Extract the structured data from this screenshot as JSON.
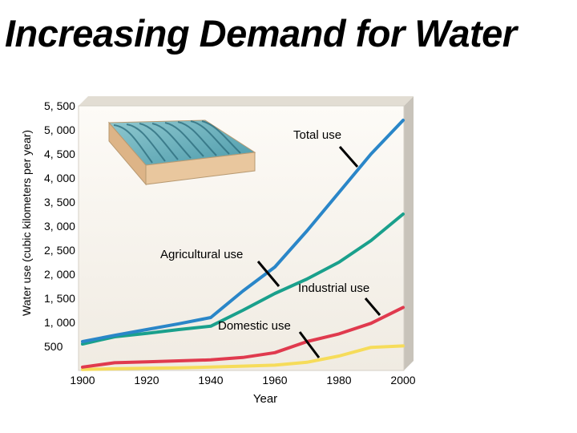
{
  "page": {
    "title": "Increasing Demand for Water"
  },
  "chart_data": {
    "type": "line",
    "title": "Increasing Demand for Water",
    "xlabel": "Year",
    "ylabel": "Water use (cubic kilometers per year)",
    "xlim": [
      1900,
      2000
    ],
    "ylim": [
      0,
      5500
    ],
    "x_ticks": [
      1900,
      1920,
      1940,
      1960,
      1980,
      2000
    ],
    "x_tick_labels": [
      "1900",
      "1920",
      "1940",
      "1960",
      "1980",
      "2000"
    ],
    "y_ticks": [
      500,
      1000,
      1500,
      2000,
      2500,
      3000,
      3500,
      4000,
      4500,
      5000,
      5500
    ],
    "y_tick_labels": [
      "500",
      "1, 000",
      "1, 500",
      "2, 000",
      "2, 500",
      "3, 000",
      "3, 500",
      "4, 000",
      "4, 500",
      "5, 000",
      "5, 500"
    ],
    "grid": false,
    "legend": "none",
    "series": [
      {
        "name": "Total use",
        "color": "#2a86c8",
        "x": [
          1900,
          1910,
          1920,
          1930,
          1940,
          1950,
          1960,
          1970,
          1980,
          1990,
          2000
        ],
        "y": [
          600,
          730,
          850,
          970,
          1100,
          1650,
          2150,
          2900,
          3700,
          4500,
          5200
        ]
      },
      {
        "name": "Agricultural use",
        "color": "#1aa08c",
        "x": [
          1900,
          1910,
          1920,
          1930,
          1940,
          1950,
          1960,
          1970,
          1980,
          1990,
          2000
        ],
        "y": [
          550,
          700,
          770,
          850,
          920,
          1250,
          1600,
          1900,
          2250,
          2700,
          3250
        ]
      },
      {
        "name": "Industrial use",
        "color": "#e03a4e",
        "x": [
          1900,
          1910,
          1920,
          1930,
          1940,
          1950,
          1960,
          1970,
          1980,
          1990,
          2000
        ],
        "y": [
          70,
          160,
          180,
          200,
          220,
          270,
          370,
          600,
          760,
          980,
          1310
        ]
      },
      {
        "name": "Domestic use",
        "color": "#f6dc5a",
        "x": [
          1900,
          1910,
          1920,
          1930,
          1940,
          1950,
          1960,
          1970,
          1980,
          1990,
          2000
        ],
        "y": [
          20,
          35,
          45,
          55,
          70,
          90,
          110,
          170,
          300,
          480,
          510
        ]
      }
    ],
    "annotations": [
      "Total use",
      "Agricultural use",
      "Industrial use",
      "Domestic use"
    ],
    "inset_picture": "irrigated-field-icon"
  }
}
